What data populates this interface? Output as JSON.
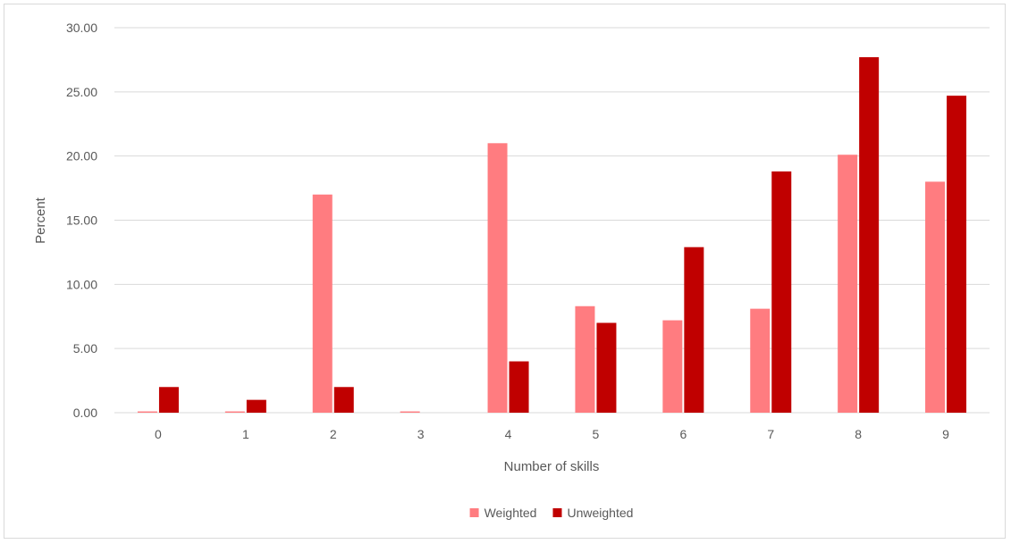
{
  "chart_data": {
    "type": "bar",
    "title": "",
    "xlabel": "Number of skills",
    "ylabel": "Percent",
    "categories": [
      "0",
      "1",
      "2",
      "3",
      "4",
      "5",
      "6",
      "7",
      "8",
      "9"
    ],
    "series": [
      {
        "name": "Weighted",
        "color": "#ff7c80",
        "values": [
          0.1,
          0.1,
          17.0,
          0.1,
          21.0,
          8.3,
          7.2,
          8.1,
          20.1,
          18.0
        ]
      },
      {
        "name": "Unweighted",
        "color": "#c00000",
        "values": [
          2.0,
          1.0,
          2.0,
          0.0,
          4.0,
          7.0,
          12.9,
          18.8,
          27.7,
          24.7
        ]
      }
    ],
    "ylim": [
      0,
      30
    ],
    "yticks": [
      "0.00",
      "5.00",
      "10.00",
      "15.00",
      "20.00",
      "25.00",
      "30.00"
    ],
    "grid": true,
    "legend_position": "bottom"
  }
}
